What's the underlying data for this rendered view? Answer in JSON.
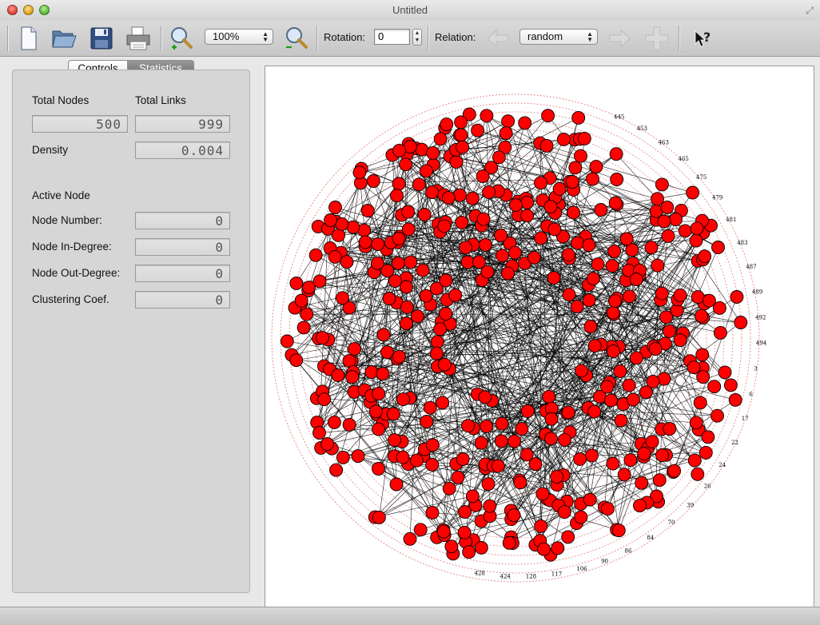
{
  "window": {
    "title": "Untitled"
  },
  "toolbar": {
    "zoom": {
      "value": "100%"
    },
    "rotation": {
      "label": "Rotation:",
      "value": "0"
    },
    "relation": {
      "label": "Relation:",
      "value": "random"
    }
  },
  "tabs": {
    "controls": "Controls",
    "statistics": "Statistics"
  },
  "stats": {
    "total_nodes": {
      "label": "Total Nodes",
      "value": "500"
    },
    "total_links": {
      "label": "Total Links",
      "value": "999"
    },
    "density": {
      "label": "Density",
      "value": "0.004"
    },
    "active_node": {
      "label": "Active Node"
    },
    "node_number": {
      "label": "Node Number:",
      "value": "0"
    },
    "node_in_degree": {
      "label": "Node In-Degree:",
      "value": "0"
    },
    "node_out_degree": {
      "label": "Node Out-Degree:",
      "value": "0"
    },
    "clustering": {
      "label": "Clustering Coef.",
      "value": "0"
    }
  },
  "graph": {
    "node_count": 500,
    "node_color": "#ff0000",
    "edge_color": "#000000",
    "ring_color": "#cc0000",
    "visible_labels": [
      "445",
      "453",
      "463",
      "465",
      "475",
      "479",
      "481",
      "483",
      "487",
      "489",
      "492",
      "494",
      "3",
      "6",
      "17",
      "22",
      "24",
      "26",
      "39",
      "70",
      "84",
      "86",
      "90",
      "106",
      "117",
      "128",
      "424",
      "428"
    ]
  }
}
